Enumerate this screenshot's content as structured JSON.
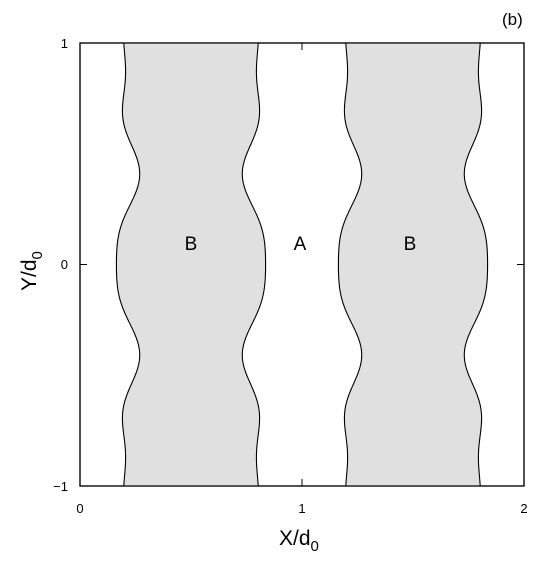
{
  "panel_label": "(b)",
  "x_axis": {
    "title_main": "X/d",
    "title_sub": "0",
    "ticks": [
      {
        "value": 0,
        "label": "0"
      },
      {
        "value": 1,
        "label": "1"
      },
      {
        "value": 2,
        "label": "2"
      }
    ],
    "range": [
      0,
      2
    ]
  },
  "y_axis": {
    "title_main": "Y/d",
    "title_sub": "0",
    "ticks": [
      {
        "value": -1,
        "label": "−1"
      },
      {
        "value": 0,
        "label": "0"
      },
      {
        "value": 1,
        "label": "1"
      }
    ],
    "range": [
      -1,
      1
    ]
  },
  "regions": [
    {
      "label": "B",
      "x_center": 0.5,
      "fill": "#e0e0e0"
    },
    {
      "label": "A",
      "x_center": 1.0,
      "fill": "#ffffff"
    },
    {
      "label": "B",
      "x_center": 1.5,
      "fill": "#e0e0e0"
    }
  ],
  "colors": {
    "shaded": "#e0e0e0",
    "stroke": "#000000"
  }
}
